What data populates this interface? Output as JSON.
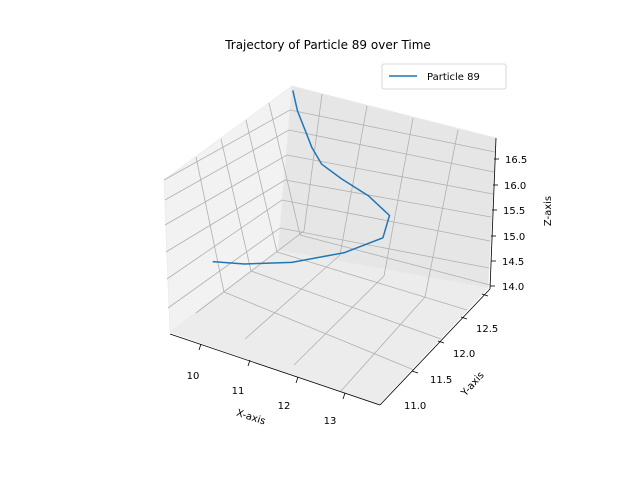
{
  "chart_data": {
    "type": "line3d",
    "title": "Trajectory of Particle 89 over Time",
    "xlabel": "X-axis",
    "ylabel": "Y-axis",
    "zlabel": "Z-axis",
    "xticks": [
      "10",
      "11",
      "12",
      "13"
    ],
    "yticks": [
      "11.0",
      "11.5",
      "12.0",
      "12.5"
    ],
    "zticks": [
      "14.0",
      "14.5",
      "15.0",
      "15.5",
      "16.0",
      "16.5"
    ],
    "legend_position": "top-right",
    "grid": true,
    "series": [
      {
        "name": "Particle 89",
        "color": "#1f77b4",
        "points": [
          {
            "x": 9.9,
            "y": 11.4,
            "z": 14.1
          },
          {
            "x": 10.5,
            "y": 11.45,
            "z": 14.1
          },
          {
            "x": 11.3,
            "y": 11.6,
            "z": 14.1
          },
          {
            "x": 12.1,
            "y": 11.85,
            "z": 14.15
          },
          {
            "x": 12.6,
            "y": 12.1,
            "z": 14.25
          },
          {
            "x": 12.5,
            "y": 12.3,
            "z": 14.45
          },
          {
            "x": 12.0,
            "y": 12.35,
            "z": 14.7
          },
          {
            "x": 11.5,
            "y": 12.3,
            "z": 15.0
          },
          {
            "x": 11.2,
            "y": 12.2,
            "z": 15.35
          },
          {
            "x": 11.05,
            "y": 12.15,
            "z": 15.7
          },
          {
            "x": 10.95,
            "y": 12.1,
            "z": 16.1
          },
          {
            "x": 10.85,
            "y": 12.05,
            "z": 16.5
          },
          {
            "x": 10.8,
            "y": 12.0,
            "z": 16.95
          }
        ]
      }
    ]
  }
}
